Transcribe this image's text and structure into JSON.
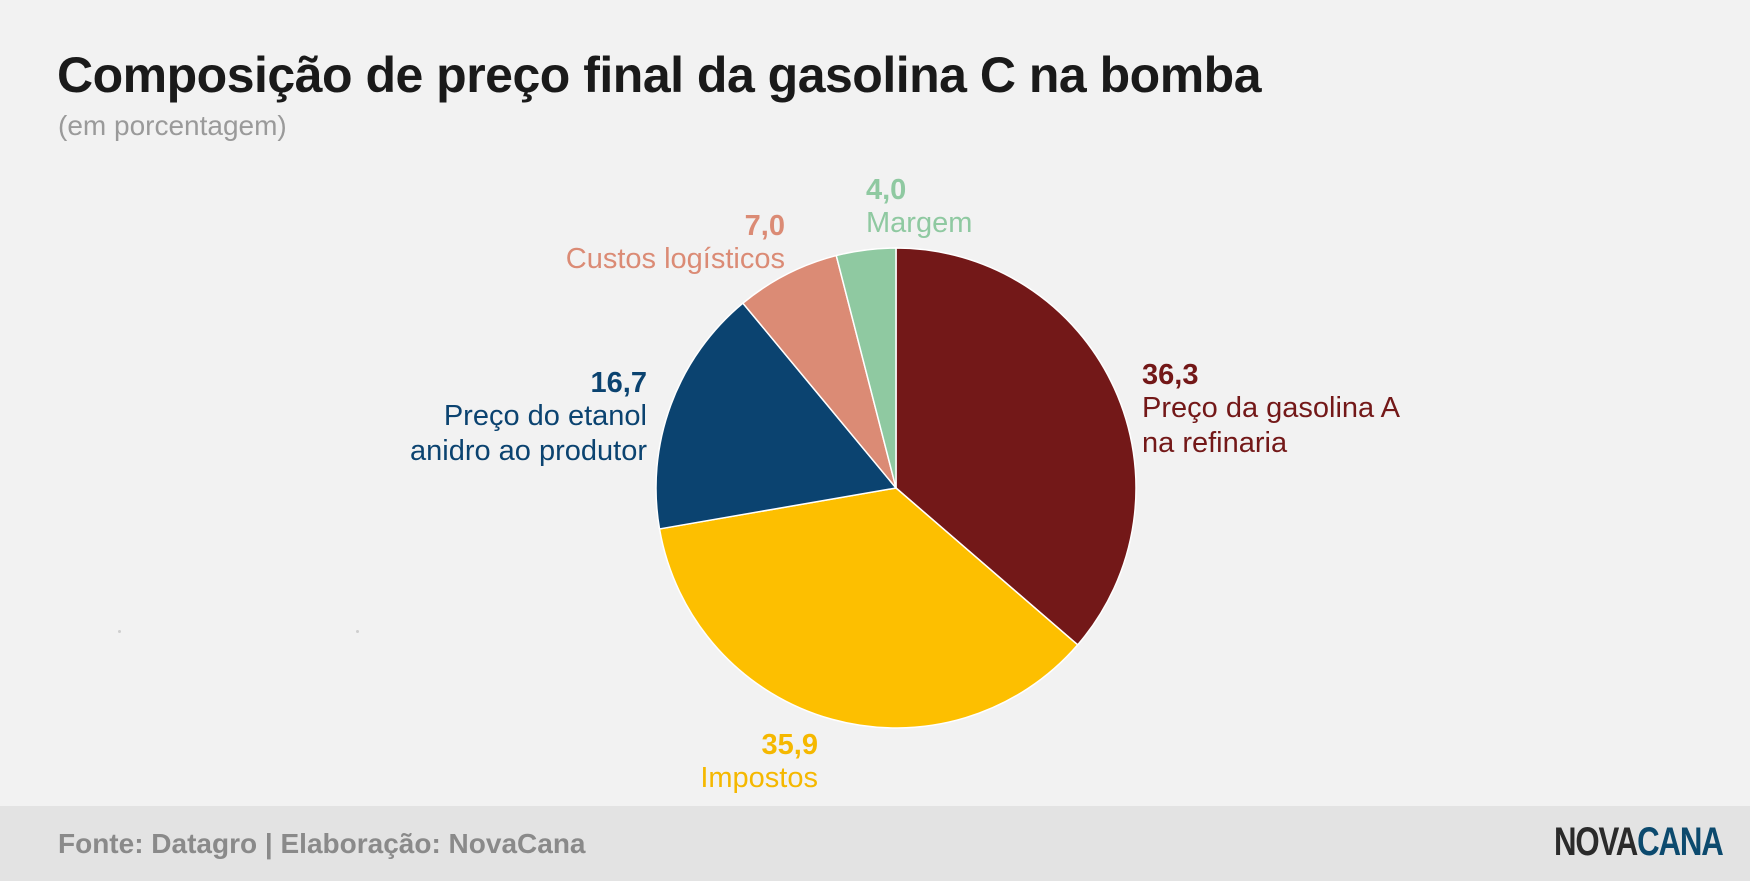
{
  "title": "Composição de preço final da gasolina C na bomba",
  "subtitle": "(em porcentagem)",
  "footer": {
    "source": "Fonte: Datagro | Elaboração: NovaCana",
    "logo_part1": "NOVA",
    "logo_part2": "CANA"
  },
  "chart_data": {
    "type": "pie",
    "title": "Composição de preço final da gasolina C na bomba",
    "subtitle": "(em porcentagem)",
    "start": "12 o'clock, clockwise",
    "slices": [
      {
        "value": 36.3,
        "value_label": "36,3",
        "label_lines": [
          "Preço da gasolina A",
          "na refinaria"
        ],
        "color": "#731818",
        "label_color": "#731818"
      },
      {
        "value": 35.9,
        "value_label": "35,9",
        "label_lines": [
          "Impostos"
        ],
        "color": "#fdbf00",
        "label_color": "#f5b800"
      },
      {
        "value": 16.7,
        "value_label": "16,7",
        "label_lines": [
          "Preço do etanol",
          "anidro ao produtor"
        ],
        "color": "#0b4370",
        "label_color": "#0b4370"
      },
      {
        "value": 7.0,
        "value_label": "7,0",
        "label_lines": [
          "Custos logísticos"
        ],
        "color": "#db8b75",
        "label_color": "#db8b75"
      },
      {
        "value": 4.0,
        "value_label": "4,0",
        "label_lines": [
          "Margem"
        ],
        "color": "#8fc9a1",
        "label_color": "#8fc9a1"
      }
    ]
  }
}
